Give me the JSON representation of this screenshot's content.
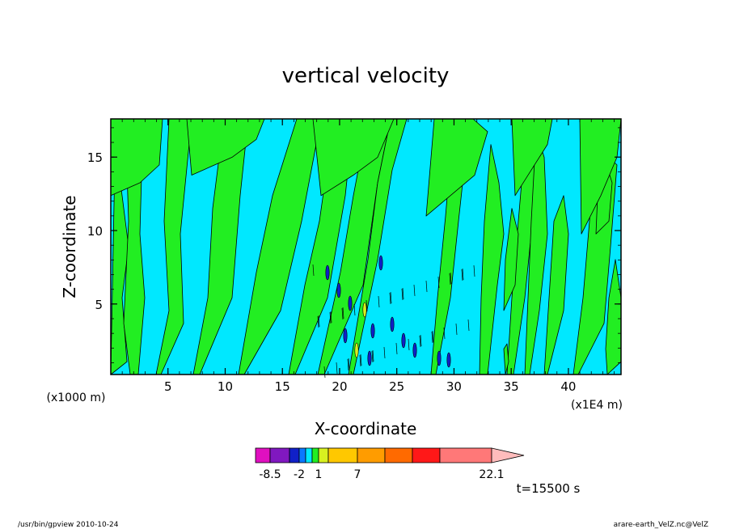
{
  "chart_data": {
    "type": "contour",
    "title": "vertical velocity",
    "xlabel": "X-coordinate",
    "ylabel": "Z-coordinate",
    "x_unit_left": "(x1000 m)",
    "x_unit_right": "(x1E4 m)",
    "x_ticks": [
      "5",
      "10",
      "15",
      "20",
      "25",
      "30",
      "35",
      "40"
    ],
    "y_ticks": [
      "5",
      "10",
      "15"
    ],
    "xlim": [
      0,
      44.6
    ],
    "ylim": [
      0.2,
      17.6
    ],
    "background_level_color": "#00e8ff",
    "positive_level_color": "#22ee22",
    "colorbar": {
      "colors": [
        "#e010c0",
        "#8018c0",
        "#1020c8",
        "#0a78ff",
        "#00e8ff",
        "#22ee22",
        "#d8f020",
        "#ffc800",
        "#ff9c00",
        "#ff6a00",
        "#ff1818",
        "#ff7878",
        "#ffbcbc"
      ],
      "labels": [
        "-8.5",
        "-2",
        "1",
        "7",
        "22.1"
      ]
    },
    "time_label": "t=15500 s"
  },
  "footer": {
    "left": "/usr/bin/gpview  2010-10-24",
    "right": "arare-earth_VelZ.nc@VelZ"
  }
}
